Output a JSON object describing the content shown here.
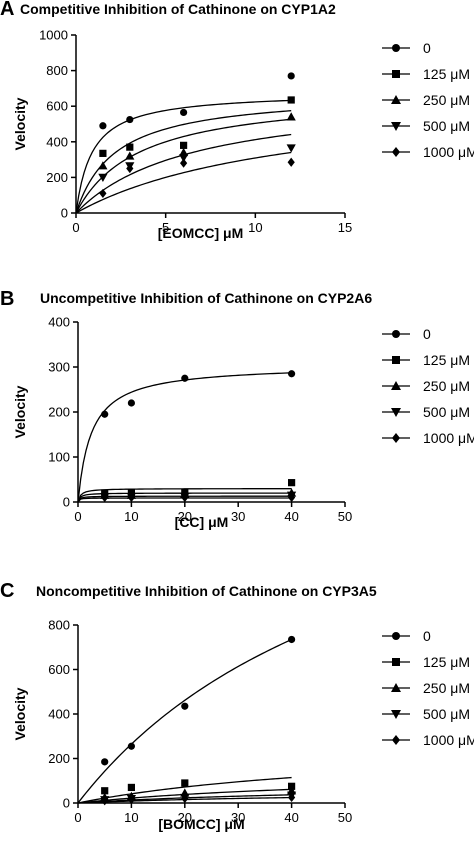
{
  "chart_data": [
    {
      "type": "scatter",
      "panel_label": "A",
      "title": "Competitive Inhibition of Cathinone on CYP1A2",
      "xlabel": "[EOMCC] μM",
      "ylabel": "Velocity",
      "xlim": [
        0,
        15
      ],
      "ylim": [
        0,
        1000
      ],
      "xticks": [
        0,
        5,
        10,
        15
      ],
      "yticks": [
        0,
        200,
        400,
        600,
        800,
        1000
      ],
      "grid": false,
      "legend_position": "right",
      "x": [
        1.5,
        3,
        6,
        12
      ],
      "series": [
        {
          "name": "0",
          "marker": "circle",
          "values": [
            490,
            525,
            565,
            770
          ],
          "fit": {
            "vmax": 680,
            "km": 0.9
          }
        },
        {
          "name": "125 μM",
          "marker": "square",
          "values": [
            335,
            370,
            380,
            635
          ],
          "fit": {
            "vmax": 680,
            "km": 2.2
          }
        },
        {
          "name": "250 μM",
          "marker": "triangle-up",
          "values": [
            265,
            320,
            340,
            540
          ],
          "fit": {
            "vmax": 680,
            "km": 3.5
          }
        },
        {
          "name": "500 μM",
          "marker": "triangle-down",
          "values": [
            200,
            265,
            310,
            365
          ],
          "fit": {
            "vmax": 680,
            "km": 6.5
          }
        },
        {
          "name": "1000 μM",
          "marker": "diamond",
          "values": [
            110,
            250,
            280,
            285
          ],
          "fit": {
            "vmax": 680,
            "km": 12
          }
        }
      ]
    },
    {
      "type": "scatter",
      "panel_label": "B",
      "title": "Uncompetitive Inhibition of Cathinone on CYP2A6",
      "xlabel": "[CC] μM",
      "ylabel": "Velocity",
      "xlim": [
        0,
        50
      ],
      "ylim": [
        0,
        400
      ],
      "xticks": [
        0,
        10,
        20,
        30,
        40,
        50
      ],
      "yticks": [
        0,
        100,
        200,
        300,
        400
      ],
      "grid": false,
      "legend_position": "right",
      "x": [
        5,
        10,
        20,
        40
      ],
      "series": [
        {
          "name": "0",
          "marker": "circle",
          "values": [
            195,
            220,
            275,
            285
          ],
          "fit": {
            "vmax": 305,
            "km": 2.5
          }
        },
        {
          "name": "125 μM",
          "marker": "square",
          "values": [
            20,
            20,
            22,
            43
          ],
          "fit": {
            "vmax": 30,
            "km": 0.5
          }
        },
        {
          "name": "250 μM",
          "marker": "triangle-up",
          "values": [
            15,
            15,
            18,
            20
          ],
          "fit": {
            "vmax": 20,
            "km": 0.4
          }
        },
        {
          "name": "500 μM",
          "marker": "triangle-down",
          "values": [
            12,
            12,
            12,
            15
          ],
          "fit": {
            "vmax": 13,
            "km": 0.3
          }
        },
        {
          "name": "1000 μM",
          "marker": "diamond",
          "values": [
            10,
            10,
            10,
            10
          ],
          "fit": {
            "vmax": 9,
            "km": 0.2
          }
        }
      ]
    },
    {
      "type": "scatter",
      "panel_label": "C",
      "title": "Noncompetitive Inhibition of Cathinone on CYP3A5",
      "xlabel": "[BOMCC] μM",
      "ylabel": "Velocity",
      "xlim": [
        0,
        50
      ],
      "ylim": [
        0,
        800
      ],
      "xticks": [
        0,
        10,
        20,
        30,
        40,
        50
      ],
      "yticks": [
        0,
        200,
        400,
        600,
        800
      ],
      "grid": false,
      "legend_position": "right",
      "x": [
        5,
        10,
        20,
        40
      ],
      "series": [
        {
          "name": "0",
          "marker": "circle",
          "values": [
            185,
            255,
            435,
            735
          ],
          "fit": {
            "vmax": 1800,
            "km": 58
          }
        },
        {
          "name": "125 μM",
          "marker": "square",
          "values": [
            55,
            70,
            90,
            75
          ],
          "fit": {
            "vmax": 280,
            "km": 58
          }
        },
        {
          "name": "250 μM",
          "marker": "triangle-up",
          "values": [
            25,
            30,
            45,
            55
          ],
          "fit": {
            "vmax": 150,
            "km": 58
          }
        },
        {
          "name": "500 μM",
          "marker": "triangle-down",
          "values": [
            15,
            20,
            25,
            35
          ],
          "fit": {
            "vmax": 90,
            "km": 58
          }
        },
        {
          "name": "1000 μM",
          "marker": "diamond",
          "values": [
            10,
            15,
            20,
            25
          ],
          "fit": {
            "vmax": 60,
            "km": 58
          }
        }
      ]
    }
  ]
}
